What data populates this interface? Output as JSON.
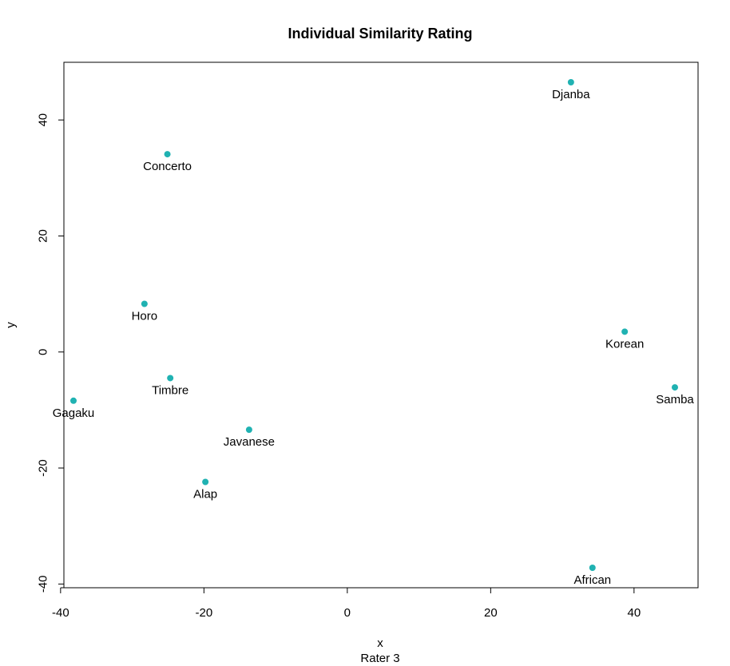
{
  "chart_data": {
    "type": "scatter",
    "title": "Individual Similarity Rating",
    "xlabel": "x",
    "sublabel": "Rater 3",
    "ylabel": "y",
    "xlim": [
      -40,
      49
    ],
    "ylim": [
      -40,
      49
    ],
    "xticks": [
      -40,
      -20,
      0,
      20,
      40
    ],
    "yticks": [
      -40,
      -20,
      0,
      20,
      40
    ],
    "point_color": "#20b2b2",
    "grid": false,
    "points": [
      {
        "label": "Djanba",
        "x": 31.2,
        "y": 46.5
      },
      {
        "label": "Concerto",
        "x": -25.1,
        "y": 34.1
      },
      {
        "label": "Horo",
        "x": -28.3,
        "y": 8.3
      },
      {
        "label": "Korean",
        "x": 38.7,
        "y": 3.5
      },
      {
        "label": "Timbre",
        "x": -24.7,
        "y": -4.5
      },
      {
        "label": "Samba",
        "x": 45.7,
        "y": -6.1
      },
      {
        "label": "Gagaku",
        "x": -38.2,
        "y": -8.4
      },
      {
        "label": "Javanese",
        "x": -13.7,
        "y": -13.4
      },
      {
        "label": "Alap",
        "x": -19.8,
        "y": -22.4
      },
      {
        "label": "African",
        "x": 34.2,
        "y": -37.2
      }
    ]
  }
}
